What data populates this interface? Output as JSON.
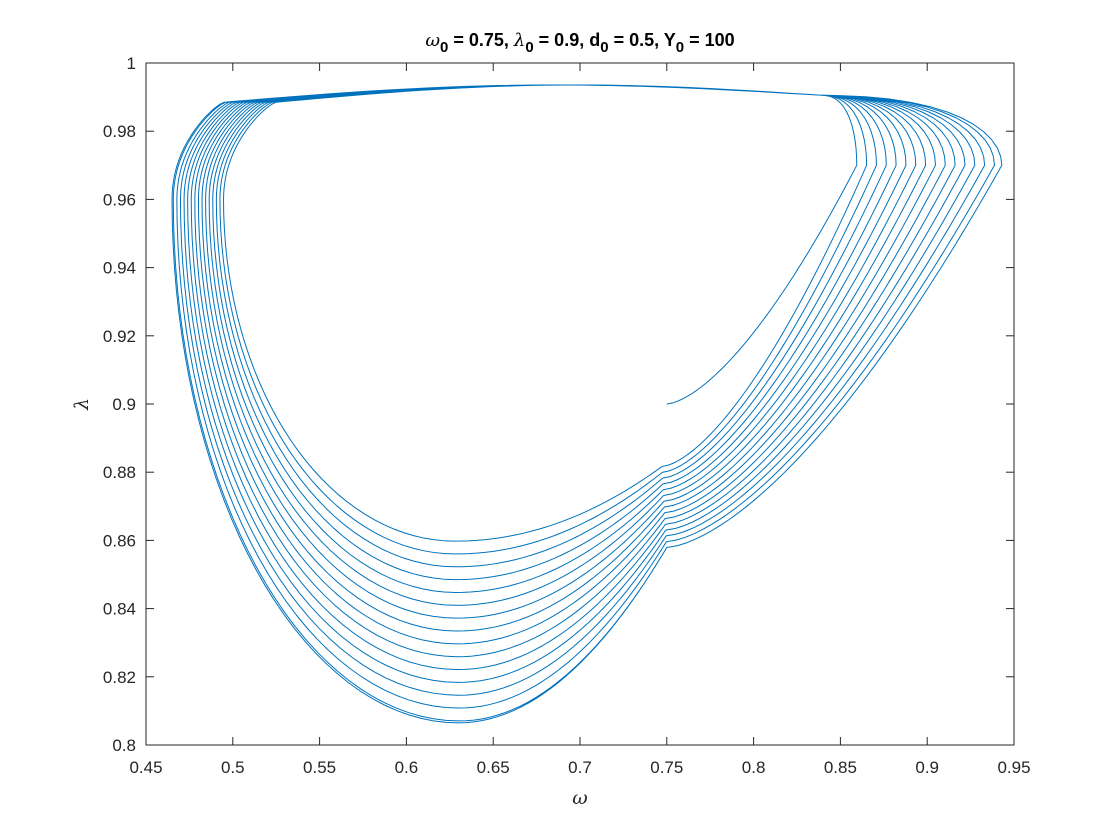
{
  "chart_data": {
    "type": "line",
    "title": {
      "parts": [
        {
          "text": "ω",
          "sub": "0",
          "after": " = 0.75, ",
          "italic": true
        },
        {
          "text": "λ",
          "sub": "0",
          "after": " = 0.9, ",
          "italic": true
        },
        {
          "text": "d",
          "sub": "0",
          "after": " = 0.5, ",
          "italic": false
        },
        {
          "text": "Y",
          "sub": "0",
          "after": " = 100",
          "italic": false
        }
      ]
    },
    "xlabel": "ω",
    "ylabel": "λ",
    "xlim": [
      0.45,
      0.95
    ],
    "ylim": [
      0.8,
      1.0
    ],
    "xticks": [
      0.45,
      0.5,
      0.55,
      0.6,
      0.65,
      0.7,
      0.75,
      0.8,
      0.85,
      0.9,
      0.95
    ],
    "xtick_labels": [
      "0.45",
      "0.5",
      "0.55",
      "0.6",
      "0.65",
      "0.7",
      "0.75",
      "0.8",
      "0.85",
      "0.9",
      "0.95"
    ],
    "yticks": [
      0.8,
      0.82,
      0.84,
      0.86,
      0.88,
      0.9,
      0.92,
      0.94,
      0.96,
      0.98,
      1.0
    ],
    "ytick_labels": [
      "0.8",
      "0.82",
      "0.84",
      "0.86",
      "0.88",
      "0.9",
      "0.92",
      "0.94",
      "0.96",
      "0.98",
      "1"
    ],
    "grid": false,
    "line_color": "#0072BD",
    "series": [
      {
        "start": [
          0.75,
          0.9
        ],
        "end": [
          0.481,
          0.912
        ],
        "loops": 16,
        "top_lambda": 0.9945,
        "inner_loop": {
          "left_omega": 0.496,
          "right_omega": 0.858,
          "bottom_lambda": 0.863,
          "bottom_omega": 0.627
        },
        "outer_loop": {
          "left_omega": 0.465,
          "right_omega": 0.943,
          "bottom_lambda": 0.8065,
          "bottom_omega": 0.63
        }
      }
    ]
  }
}
